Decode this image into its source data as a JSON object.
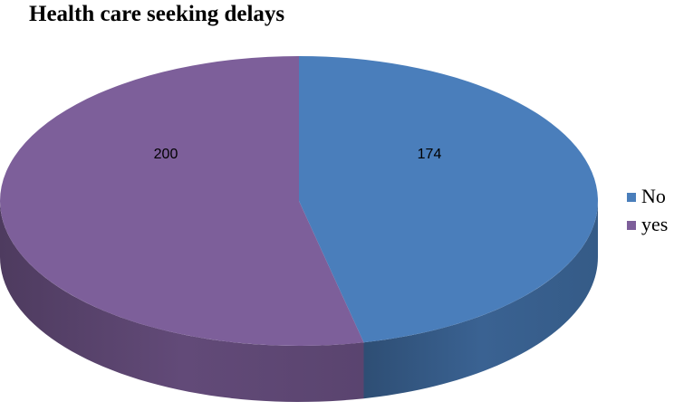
{
  "chart_data": {
    "type": "pie",
    "style": "3d",
    "title": "Health care seeking delays",
    "categories": [
      "No",
      "yes"
    ],
    "values": [
      174,
      200
    ],
    "colors": [
      "#4a7ebb",
      "#7d5f9a"
    ],
    "data_labels": [
      "174",
      "200"
    ],
    "legend_placement": "right"
  }
}
